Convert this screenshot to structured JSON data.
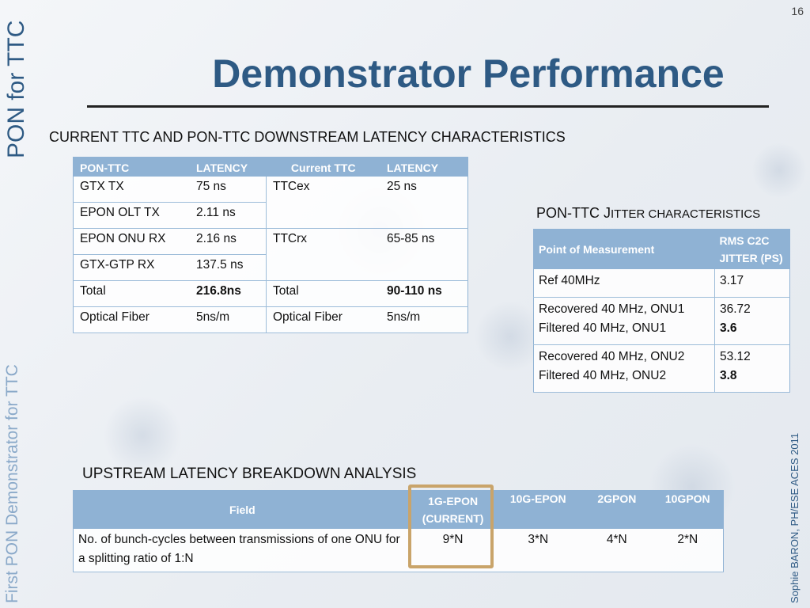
{
  "page_number": "16",
  "sidebar_top": "PON for TTC",
  "sidebar_bottom": "First PON Demonstrator for TTC",
  "sidebar_right": "Sophie BARON, PH/ESE    ACES 2011",
  "title": "Demonstrator Performance",
  "downstream": {
    "heading": "CURRENT TTC AND PON-TTC DOWNSTREAM LATENCY CHARACTERISTICS",
    "headers": [
      "PON-TTC",
      "LATENCY",
      "Current TTC",
      "LATENCY"
    ],
    "rows": [
      {
        "a": "GTX TX",
        "b": "75 ns",
        "c": "TTCex",
        "d": "25 ns"
      },
      {
        "a": "EPON OLT TX",
        "b": "2.11 ns",
        "c": "",
        "d": ""
      },
      {
        "a": "EPON ONU RX",
        "b": "2.16 ns",
        "c": "TTCrx",
        "d": "65-85 ns"
      },
      {
        "a": "GTX-GTP RX",
        "b": "137.5 ns",
        "c": "",
        "d": ""
      },
      {
        "a": "Total",
        "b": "216.8ns",
        "c": "Total",
        "d": "90-110 ns"
      },
      {
        "a": "Optical Fiber",
        "b": "5ns/m",
        "c": "Optical Fiber",
        "d": "5ns/m"
      }
    ]
  },
  "jitter": {
    "heading_part1": "PON-TTC J",
    "heading_part2": "ITTER CHARACTERISTICS",
    "header_point": "Point of Measurement",
    "header_rms": "RMS C2C JITTER (PS)",
    "rows": [
      {
        "point1": "Ref 40MHz",
        "point2": "",
        "val1": "3.17",
        "val2": ""
      },
      {
        "point1": "Recovered 40 MHz, ONU1",
        "point2": "Filtered 40 MHz, ONU1",
        "val1": "36.72",
        "val2": "3.6"
      },
      {
        "point1": "Recovered 40 MHz, ONU2",
        "point2": "Filtered 40 MHz, ONU2",
        "val1": "53.12",
        "val2": "3.8"
      }
    ]
  },
  "upstream": {
    "heading": "UPSTREAM LATENCY BREAKDOWN ANALYSIS",
    "header_field": "Field",
    "header_1g": "1G-EPON (CURRENT)",
    "header_10g": "10G-EPON",
    "header_2gpon": "2GPON",
    "header_10gpon": "10GPON",
    "row_label": "No. of bunch-cycles between transmissions of one ONU for a splitting ratio of 1:N",
    "val_1g": "9*N",
    "val_10g": "3*N",
    "val_2gpon": "4*N",
    "val_10gpon": "2*N"
  }
}
